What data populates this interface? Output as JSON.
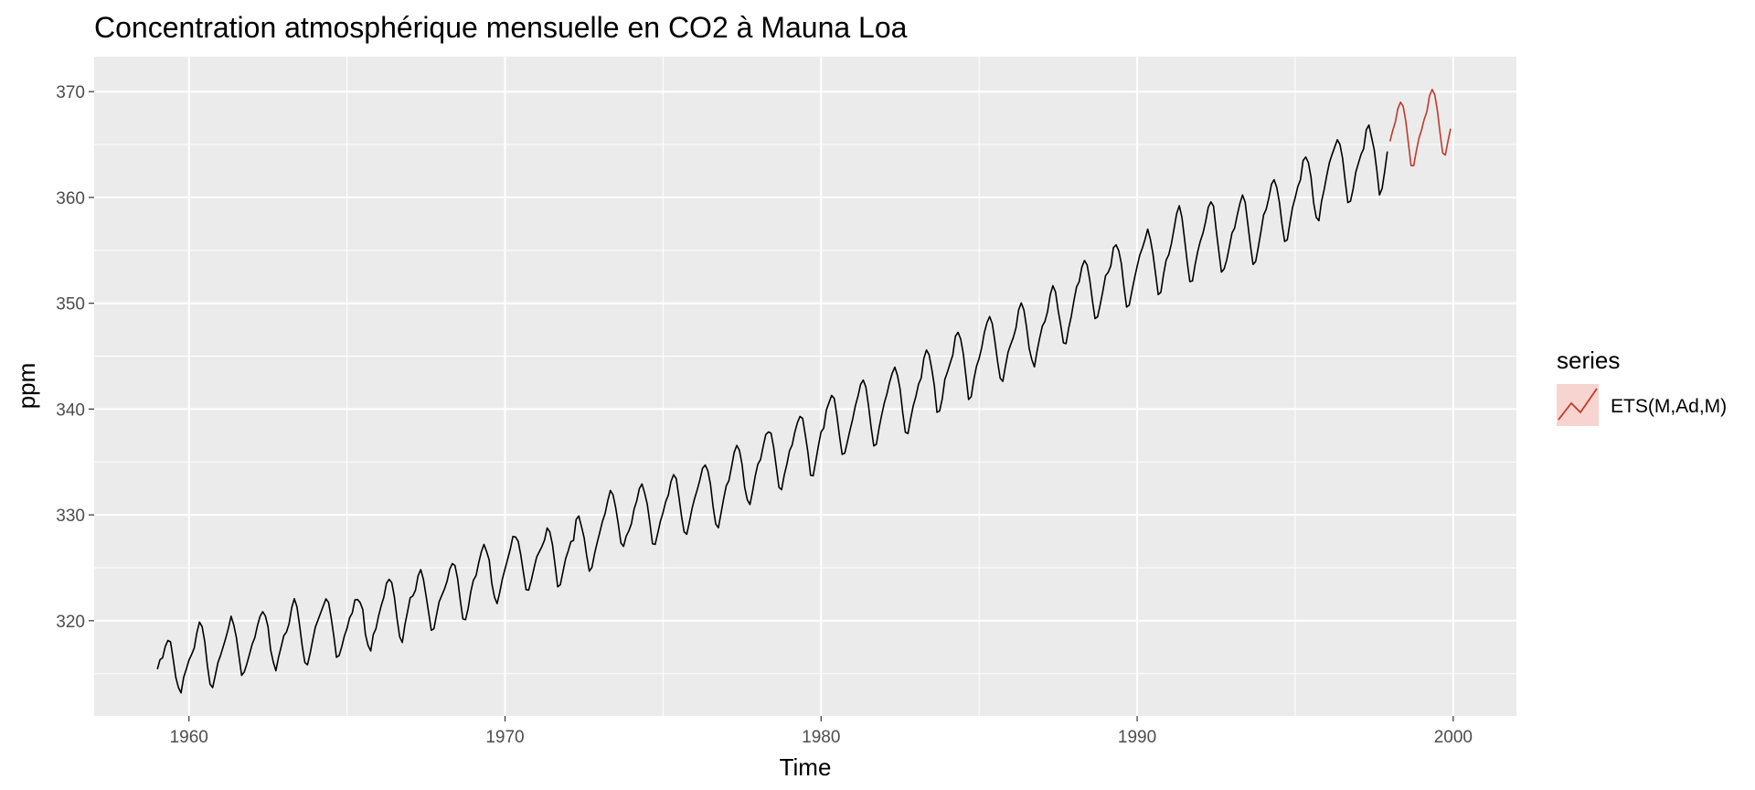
{
  "chart_data": {
    "type": "line",
    "title": "Concentration atmosphérique mensuelle en CO2 à Mauna Loa",
    "xlabel": "Time",
    "ylabel": "ppm",
    "xlim": [
      1957.0,
      2002.0
    ],
    "ylim": [
      311.0,
      373.3
    ],
    "x_ticks": [
      1960,
      1970,
      1980,
      1990,
      2000
    ],
    "x_tick_labels": [
      "1960",
      "1970",
      "1980",
      "1990",
      "2000"
    ],
    "y_ticks": [
      320,
      330,
      340,
      350,
      360,
      370
    ],
    "y_tick_labels": [
      "320",
      "330",
      "340",
      "350",
      "360",
      "370"
    ],
    "grid": true,
    "legend": {
      "title": "series",
      "placement": "right",
      "entries": [
        "ETS(M,Ad,M)"
      ]
    },
    "series": [
      {
        "color": "#000000",
        "start": [
          1959,
          1
        ],
        "frequency": 12,
        "values": [
          315.42,
          316.31,
          316.5,
          317.56,
          318.13,
          318.0,
          316.39,
          314.65,
          313.68,
          313.18,
          314.66,
          315.43,
          316.27,
          316.81,
          317.42,
          318.87,
          319.87,
          319.43,
          318.01,
          315.74,
          314.0,
          313.68,
          314.84,
          316.03,
          316.73,
          317.54,
          318.38,
          319.31,
          320.42,
          319.61,
          318.42,
          316.63,
          314.83,
          315.16,
          315.94,
          316.85,
          317.78,
          318.4,
          319.53,
          320.42,
          320.85,
          320.45,
          319.45,
          317.25,
          316.11,
          315.27,
          316.53,
          317.53,
          318.58,
          318.92,
          319.7,
          321.22,
          322.08,
          321.31,
          319.58,
          317.61,
          316.05,
          315.83,
          316.91,
          318.2,
          319.41,
          320.07,
          320.74,
          321.4,
          322.06,
          321.73,
          320.27,
          318.54,
          316.54,
          316.71,
          317.53,
          318.55,
          319.27,
          320.28,
          320.73,
          321.97,
          322.0,
          321.71,
          321.05,
          318.71,
          317.66,
          317.14,
          318.7,
          319.25,
          320.46,
          321.43,
          322.23,
          323.54,
          323.91,
          323.59,
          322.24,
          320.2,
          318.48,
          317.94,
          319.63,
          320.87,
          322.17,
          322.34,
          322.88,
          324.25,
          324.83,
          323.93,
          322.38,
          320.76,
          319.1,
          319.24,
          320.56,
          321.8,
          322.4,
          322.99,
          323.73,
          324.86,
          325.4,
          325.2,
          323.98,
          321.95,
          320.18,
          320.09,
          321.16,
          322.74,
          323.83,
          324.26,
          325.47,
          326.5,
          327.21,
          326.54,
          325.72,
          323.5,
          322.22,
          321.62,
          322.69,
          323.95,
          324.89,
          325.82,
          326.77,
          327.97,
          327.91,
          327.5,
          326.18,
          324.53,
          322.93,
          322.9,
          323.85,
          324.96,
          326.01,
          326.51,
          327.01,
          327.62,
          328.76,
          328.4,
          327.2,
          325.27,
          323.2,
          323.4,
          324.63,
          325.85,
          326.6,
          327.47,
          327.58,
          329.56,
          329.9,
          328.92,
          327.88,
          326.16,
          324.68,
          325.04,
          326.34,
          327.39,
          328.37,
          329.4,
          330.14,
          331.33,
          332.31,
          331.9,
          330.7,
          329.15,
          327.35,
          327.02,
          327.99,
          328.48,
          329.18,
          330.55,
          331.32,
          332.48,
          332.92,
          332.08,
          331.01,
          329.23,
          327.27,
          327.21,
          328.29,
          329.41,
          330.23,
          331.25,
          331.87,
          333.14,
          333.8,
          333.43,
          331.73,
          329.9,
          328.4,
          328.17,
          329.32,
          330.59,
          331.58,
          332.39,
          333.33,
          334.41,
          334.71,
          334.17,
          332.89,
          330.77,
          329.14,
          328.78,
          330.14,
          331.52,
          332.75,
          333.24,
          334.53,
          335.9,
          336.57,
          336.1,
          334.76,
          332.59,
          331.42,
          330.98,
          332.24,
          333.68,
          334.8,
          335.22,
          336.47,
          337.59,
          337.84,
          337.72,
          336.37,
          334.51,
          332.6,
          332.38,
          333.75,
          334.78,
          336.05,
          336.59,
          337.79,
          338.71,
          339.3,
          339.12,
          337.56,
          335.92,
          333.75,
          333.7,
          335.12,
          336.56,
          337.84,
          338.19,
          339.91,
          340.6,
          341.29,
          341.0,
          339.39,
          337.43,
          335.72,
          335.84,
          336.93,
          338.04,
          339.06,
          340.3,
          341.21,
          342.33,
          342.74,
          342.08,
          340.32,
          338.26,
          336.52,
          336.68,
          338.19,
          339.44,
          340.57,
          341.44,
          342.53,
          343.39,
          343.96,
          343.18,
          341.88,
          339.65,
          337.81,
          337.69,
          339.09,
          340.32,
          341.2,
          342.35,
          342.93,
          344.77,
          345.58,
          345.14,
          343.81,
          342.21,
          339.69,
          339.82,
          340.98,
          342.82,
          343.52,
          344.33,
          345.11,
          346.88,
          347.25,
          346.62,
          345.22,
          343.11,
          340.9,
          341.18,
          342.8,
          344.04,
          344.79,
          345.82,
          347.25,
          348.17,
          348.74,
          348.07,
          346.38,
          344.51,
          342.92,
          342.62,
          344.06,
          345.38,
          346.11,
          346.78,
          347.68,
          349.37,
          350.03,
          349.37,
          347.76,
          345.73,
          344.68,
          343.99,
          345.48,
          346.72,
          347.84,
          348.29,
          349.23,
          350.8,
          351.66,
          351.07,
          349.33,
          347.92,
          346.27,
          346.18,
          347.64,
          348.78,
          350.25,
          351.54,
          352.05,
          353.41,
          354.04,
          353.62,
          352.22,
          350.27,
          348.55,
          348.72,
          349.91,
          351.18,
          352.6,
          352.92,
          353.53,
          355.26,
          355.52,
          354.97,
          353.75,
          351.52,
          349.64,
          349.83,
          351.14,
          352.37,
          353.5,
          354.55,
          355.23,
          356.04,
          357.0,
          356.07,
          354.67,
          352.76,
          350.82,
          351.04,
          352.69,
          354.07,
          354.59,
          355.63,
          357.03,
          358.48,
          359.22,
          358.12,
          356.06,
          353.92,
          352.05,
          352.11,
          353.64,
          354.89,
          355.88,
          356.63,
          357.72,
          359.07,
          359.58,
          359.17,
          356.94,
          354.92,
          352.94,
          353.23,
          354.09,
          355.33,
          356.63,
          357.1,
          358.32,
          359.41,
          360.23,
          359.55,
          357.53,
          355.48,
          353.67,
          353.95,
          355.3,
          356.78,
          358.34,
          358.89,
          359.95,
          361.25,
          361.67,
          360.94,
          359.55,
          357.49,
          355.84,
          356.0,
          357.59,
          359.05,
          359.98,
          361.03,
          361.66,
          363.48,
          363.82,
          363.3,
          361.94,
          359.5,
          358.11,
          357.8,
          359.61,
          360.74,
          362.09,
          363.29,
          364.06,
          364.76,
          365.45,
          365.01,
          363.7,
          361.54,
          359.51,
          359.65,
          360.8,
          362.38,
          363.23,
          364.06,
          364.61,
          366.4,
          366.84,
          365.68,
          364.52,
          362.57,
          360.24,
          360.83,
          362.49,
          364.34
        ]
      },
      {
        "name": "ETS(M,Ad,M)",
        "color": "#c0392b",
        "start": [
          1998,
          1
        ],
        "frequency": 12,
        "values": [
          365.3,
          366.3,
          367.1,
          368.4,
          369.0,
          368.6,
          367.2,
          365.1,
          363.0,
          363.0,
          364.4,
          365.6,
          366.4,
          367.4,
          368.1,
          369.6,
          370.2,
          369.7,
          368.2,
          366.1,
          364.2,
          364.0,
          365.3,
          366.5
        ]
      }
    ]
  }
}
